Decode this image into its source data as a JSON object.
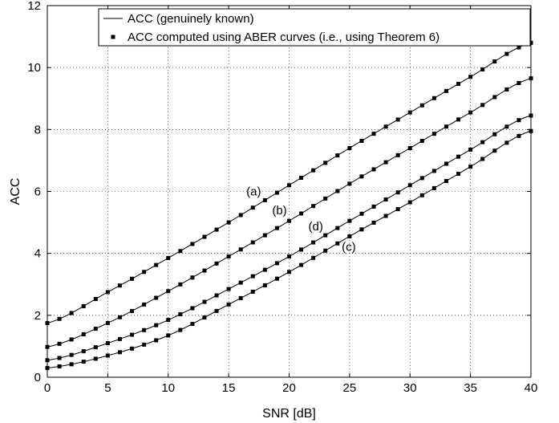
{
  "chart_data": {
    "type": "line",
    "xlabel": "SNR [dB]",
    "ylabel": "ACC",
    "xlim": [
      0,
      40
    ],
    "ylim": [
      0,
      12
    ],
    "xticks": [
      0,
      5,
      10,
      15,
      20,
      25,
      30,
      35,
      40
    ],
    "yticks": [
      0,
      2,
      4,
      6,
      8,
      10,
      12
    ],
    "grid": true,
    "legend_position": "top-left",
    "legend": [
      {
        "label": "ACC (genuinely known)",
        "marker": "line"
      },
      {
        "label": "ACC computed using ABER curves (i.e., using Theorem 6)",
        "marker": "square"
      }
    ],
    "x": [
      0,
      5,
      10,
      15,
      20,
      25,
      30,
      35,
      40
    ],
    "series": [
      {
        "name": "(a)",
        "values": [
          1.75,
          2.75,
          3.85,
          5.0,
          6.2,
          7.4,
          8.55,
          9.7,
          10.8
        ]
      },
      {
        "name": "(b)",
        "values": [
          0.98,
          1.75,
          2.78,
          3.9,
          5.05,
          6.25,
          7.4,
          8.55,
          9.65
        ]
      },
      {
        "name": "(d)",
        "values": [
          0.55,
          1.1,
          1.85,
          2.85,
          3.9,
          5.05,
          6.2,
          7.35,
          8.45
        ]
      },
      {
        "name": "(c)",
        "values": [
          0.3,
          0.7,
          1.35,
          2.35,
          3.4,
          4.55,
          5.65,
          6.8,
          7.95
        ]
      }
    ],
    "annotations": [
      {
        "text": "(a)",
        "x": 18,
        "series": 0
      },
      {
        "text": "(b)",
        "x": 20,
        "series": 1
      },
      {
        "text": "(d)",
        "x": 23,
        "series": 2
      },
      {
        "text": "(c)",
        "x": 25,
        "series": 3
      }
    ]
  }
}
